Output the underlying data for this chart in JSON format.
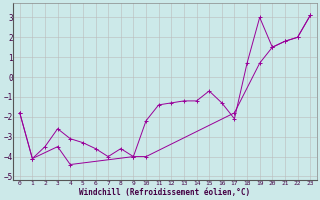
{
  "xlabel": "Windchill (Refroidissement éolien,°C)",
  "xlim": [
    -0.5,
    23.5
  ],
  "ylim": [
    -5.2,
    3.7
  ],
  "yticks": [
    -5,
    -4,
    -3,
    -2,
    -1,
    0,
    1,
    2,
    3
  ],
  "xticks": [
    0,
    1,
    2,
    3,
    4,
    5,
    6,
    7,
    8,
    9,
    10,
    11,
    12,
    13,
    14,
    15,
    16,
    17,
    18,
    19,
    20,
    21,
    22,
    23
  ],
  "bg_color": "#cce9e9",
  "line_color": "#990099",
  "grid_color": "#bbbbbb",
  "series1_x": [
    0,
    1,
    2,
    3,
    4,
    5,
    6,
    7,
    8,
    9,
    10,
    11,
    12,
    13,
    14,
    15,
    16,
    17,
    18,
    19,
    20,
    21,
    22,
    23
  ],
  "series1_y": [
    -1.8,
    -4.1,
    -3.5,
    -2.6,
    -3.1,
    -3.3,
    -3.6,
    -4.0,
    -3.6,
    -4.0,
    -2.2,
    -1.4,
    -1.3,
    -1.2,
    -1.2,
    -0.7,
    -1.3,
    -2.1,
    0.7,
    3.0,
    1.5,
    1.8,
    2.0,
    3.1
  ],
  "series2_x": [
    0,
    1,
    3,
    4,
    9,
    10,
    17,
    19,
    20,
    21,
    22,
    23
  ],
  "series2_y": [
    -1.8,
    -4.1,
    -3.5,
    -4.4,
    -4.0,
    -4.0,
    -1.8,
    0.7,
    1.5,
    1.8,
    2.0,
    3.1
  ],
  "marker": "+",
  "linewidth": 0.7,
  "markersize": 2.5
}
